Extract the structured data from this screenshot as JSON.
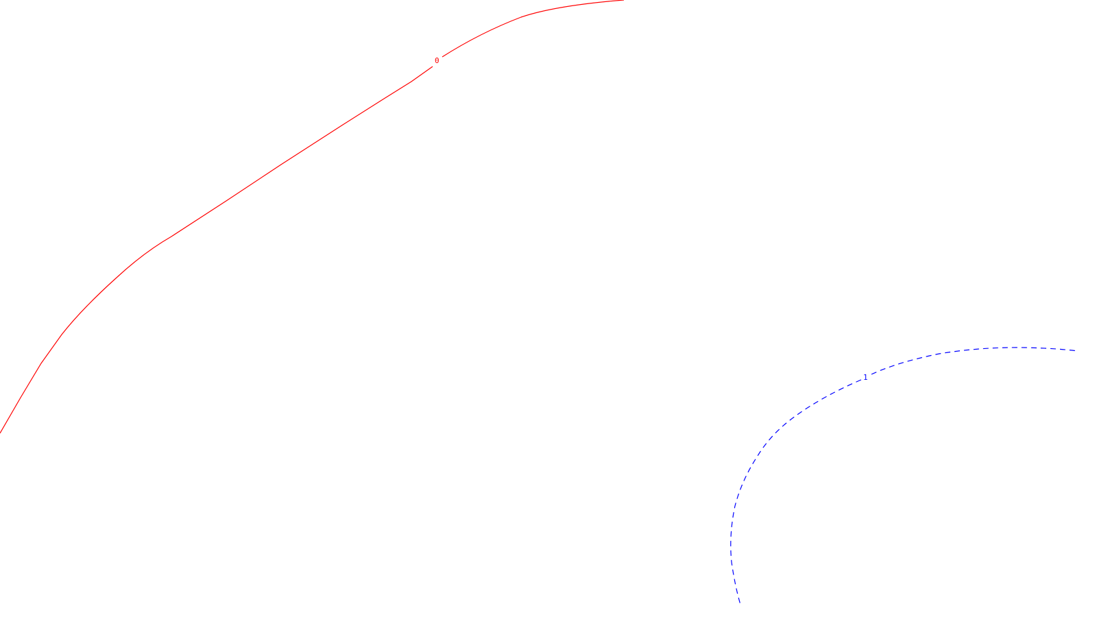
{
  "colors": {
    "background": "#ffffff",
    "contour_0": "#ff0000",
    "contour_1": "#0000ff"
  },
  "contours": [
    {
      "label": "0",
      "color": "#ff0000",
      "style": "solid"
    },
    {
      "label": "1",
      "color": "#0000ff",
      "style": "dashed"
    }
  ]
}
